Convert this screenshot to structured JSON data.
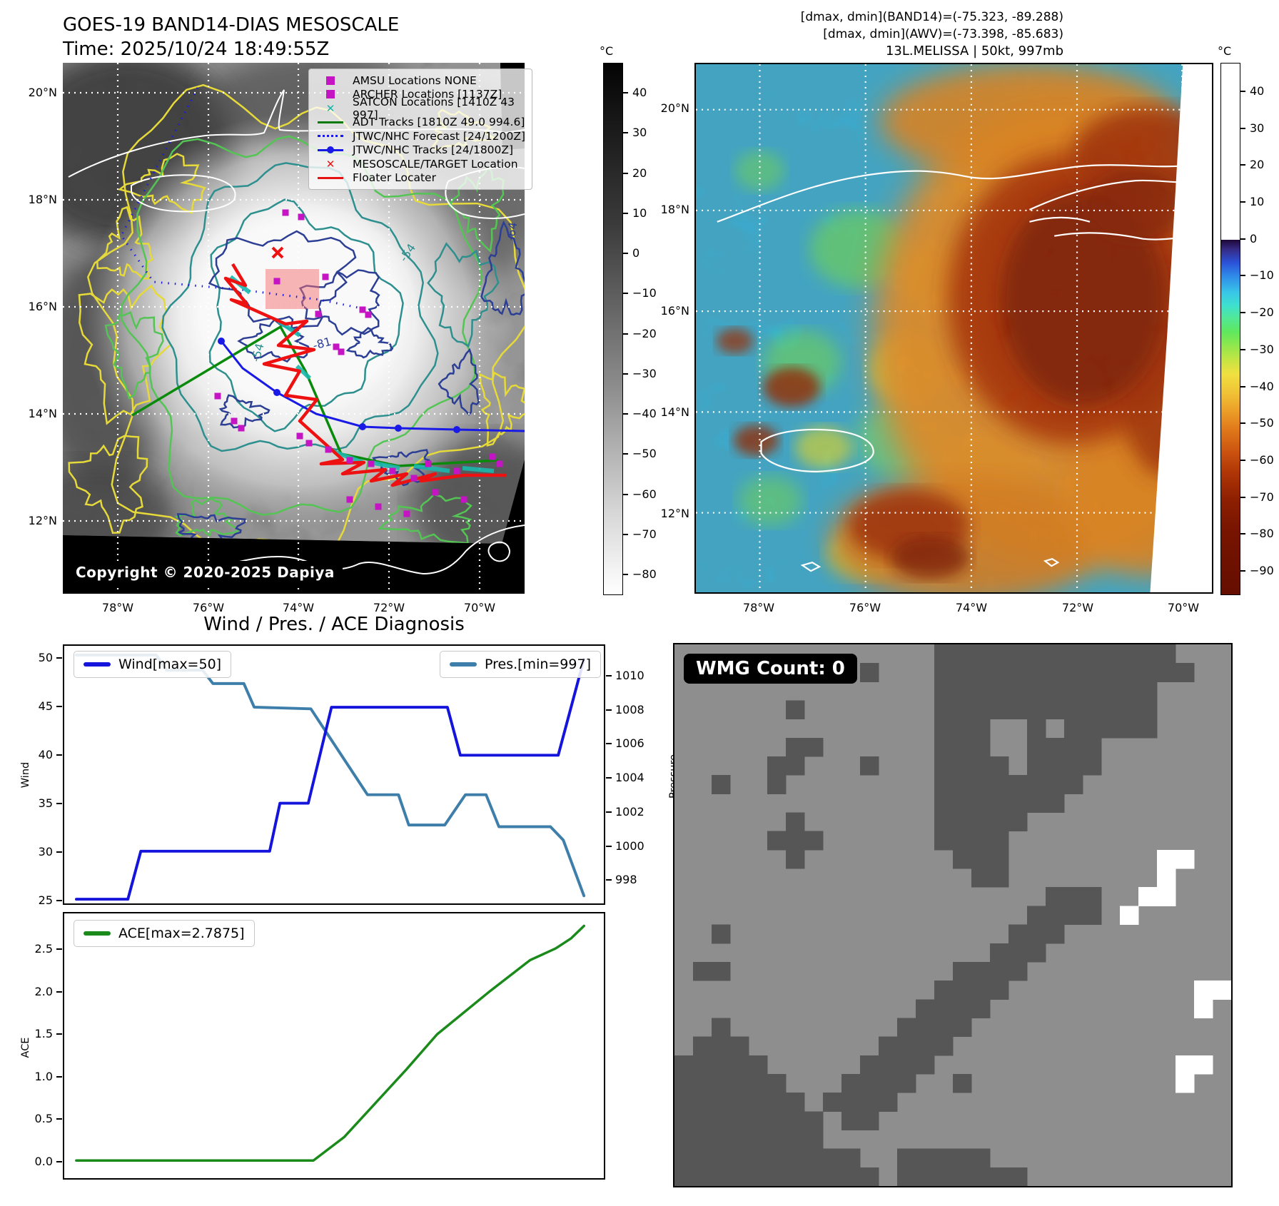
{
  "header": {
    "left_title_line1": "GOES-19 BAND14-DIAS MESOSCALE",
    "left_title_line2": "Time: 2025/10/24 18:49:55Z",
    "right_line1": "[dmax, dmin](BAND14)=(-75.323, -89.288)",
    "right_line2": "[dmax, dmin](AWV)=(-73.398, -85.683)",
    "right_line3": "13L.MELISSA | 50kt, 997mb"
  },
  "left_map": {
    "lat_ticks": [
      "20°N",
      "18°N",
      "16°N",
      "14°N",
      "12°N"
    ],
    "lon_ticks": [
      "78°W",
      "76°W",
      "74°W",
      "72°W",
      "70°W"
    ],
    "colorbar": {
      "unit": "°C",
      "ticks": [
        "40",
        "30",
        "20",
        "10",
        "0",
        "−10",
        "−20",
        "−30",
        "−40",
        "−50",
        "−60",
        "−70",
        "−80"
      ]
    },
    "contour_labels": [
      "-54",
      "-64",
      "-81"
    ],
    "copyright": "Copyright © 2020-2025 Dapiya",
    "legend": {
      "items": [
        {
          "label": "AMSU Locations NONE",
          "marker": "square-magenta"
        },
        {
          "label": "ARCHER Locations [1137Z]",
          "marker": "square-magenta"
        },
        {
          "label": "SATCON Locations [1410Z 43 997]",
          "marker": "x-teal"
        },
        {
          "label": "ADT Tracks [1810Z 49.0 994.6]",
          "marker": "line-green"
        },
        {
          "label": "JTWC/NHC Forecast [24/1200Z]",
          "marker": "dotted-blue"
        },
        {
          "label": "JTWC/NHC Tracks [24/1800Z]",
          "marker": "line-dot-blue"
        },
        {
          "label": "MESOSCALE/TARGET Location",
          "marker": "x-red"
        },
        {
          "label": "Floater Locater",
          "marker": "line-red"
        }
      ]
    }
  },
  "right_map": {
    "lat_ticks": [
      "20°N",
      "18°N",
      "16°N",
      "14°N",
      "12°N"
    ],
    "lon_ticks": [
      "78°W",
      "76°W",
      "74°W",
      "72°W",
      "70°W"
    ],
    "colorbar": {
      "unit": "°C",
      "ticks": [
        "40",
        "30",
        "20",
        "10",
        "0",
        "−10",
        "−20",
        "−30",
        "−40",
        "−50",
        "−60",
        "−70",
        "−80",
        "−90"
      ]
    }
  },
  "wmg": {
    "label": "WMG Count: 0",
    "colors": {
      "bg": "#8e8e8e",
      "dark": "#565656",
      "white": "#ffffff"
    },
    "grid": [
      "..............DDDDDDDDDDDDD...",
      "..........D...DDDDDDDDDDDDDD..",
      "..............DDDDDDDDDDDD....",
      "......D.......DDDDDDDDDDDD....",
      "..............DDD..D.DDDDD....",
      "......DD......DDD..DDDD.......",
      ".....DD...D...DDDD.DDDD.......",
      "..D..D........DDDDDDDD........",
      "..............DDDDDDD.........",
      "......D.......DDDDD...........",
      ".....DDD......DDDD............",
      "......D........DDD........WW..",
      "................DD........W...",
      "....................DDD..WW...",
      "...................DDDD.W.....",
      "..D...............DDD.........",
      ".................DDD..........",
      ".DD............DDDD...........",
      "..............DDDD..........WW",
      ".............DDDD...........W.",
      "..D.........DDDD..............",
      ".DDD.......DDDD...............",
      "DDDDD.....DDDD.............WW.",
      "DDDDDD...DDDD..D...........W..",
      "DDDDDDD.DDDD..................",
      "DDDDDDDD.DD...................",
      "DDDDDDDD......................",
      "DDDDDDDDDD..DDDDD.............",
      "DDDDDDDDDDD.DDDDDDD..........."
    ]
  },
  "chart_data": [
    {
      "type": "line",
      "name": "wind_pressure_diagnosis",
      "title": "Wind / Pres. / ACE Diagnosis",
      "left_axis": {
        "label": "Wind",
        "ticks": [
          "50",
          "45",
          "40",
          "35",
          "30",
          "25"
        ],
        "ylim": [
          25,
          50
        ]
      },
      "right_axis": {
        "label": "Pressure",
        "ticks": [
          "1010",
          "1008",
          "1006",
          "1004",
          "1002",
          "1000",
          "998"
        ],
        "ylim": [
          997,
          1011
        ]
      },
      "x_axis": {
        "tick_labels_visible": false
      },
      "series": [
        {
          "name": "Wind[max=50]",
          "color": "#1414dc",
          "axis": "left",
          "legend_position": "top-left",
          "points": [
            [
              0.0,
              25
            ],
            [
              0.1,
              25
            ],
            [
              0.125,
              30
            ],
            [
              0.375,
              30
            ],
            [
              0.395,
              35
            ],
            [
              0.45,
              35
            ],
            [
              0.495,
              45
            ],
            [
              0.72,
              45
            ],
            [
              0.745,
              40
            ],
            [
              0.935,
              40
            ],
            [
              0.985,
              50
            ]
          ]
        },
        {
          "name": "Pres.[min=997]",
          "color": "#3d7eaa",
          "axis": "right",
          "legend_position": "top-right",
          "points": [
            [
              0.0,
              1011.3
            ],
            [
              0.155,
              1011.3
            ],
            [
              0.175,
              1010.4
            ],
            [
              0.245,
              1010.4
            ],
            [
              0.265,
              1009.6
            ],
            [
              0.325,
              1009.6
            ],
            [
              0.345,
              1008.2
            ],
            [
              0.455,
              1008.1
            ],
            [
              0.565,
              1003.0
            ],
            [
              0.625,
              1003.0
            ],
            [
              0.645,
              1001.2
            ],
            [
              0.715,
              1001.2
            ],
            [
              0.755,
              1003.0
            ],
            [
              0.795,
              1003.0
            ],
            [
              0.82,
              1001.1
            ],
            [
              0.92,
              1001.1
            ],
            [
              0.945,
              1000.3
            ],
            [
              0.985,
              997.0
            ]
          ]
        }
      ]
    },
    {
      "type": "line",
      "name": "ace_diagnosis",
      "left_axis": {
        "label": "ACE",
        "ticks": [
          "2.5",
          "2.0",
          "1.5",
          "1.0",
          "0.5",
          "0.0"
        ],
        "ylim": [
          0,
          2.7875
        ]
      },
      "x_axis": {
        "tick_labels_visible": false
      },
      "series": [
        {
          "name": "ACE[max=2.7875]",
          "color": "#1a8a1a",
          "axis": "left",
          "legend_position": "top-left",
          "points": [
            [
              0.0,
              0.0
            ],
            [
              0.46,
              0.0
            ],
            [
              0.52,
              0.28
            ],
            [
              0.58,
              0.68
            ],
            [
              0.64,
              1.08
            ],
            [
              0.7,
              1.5
            ],
            [
              0.72,
              1.6
            ],
            [
              0.8,
              2.0
            ],
            [
              0.88,
              2.38
            ],
            [
              0.93,
              2.52
            ],
            [
              0.96,
              2.64
            ],
            [
              0.985,
              2.7875
            ]
          ]
        }
      ]
    }
  ],
  "colors": {
    "wind": "#1414dc",
    "pressure": "#3d7eaa",
    "ace": "#1a8a1a",
    "track_red": "#ee1111",
    "track_green": "#0a8a0a",
    "track_blue": "#1a1ae6",
    "satcon_teal": "#1ab8ac",
    "amsu_magenta": "#c414c4",
    "target_box_pink": "#f07070"
  }
}
